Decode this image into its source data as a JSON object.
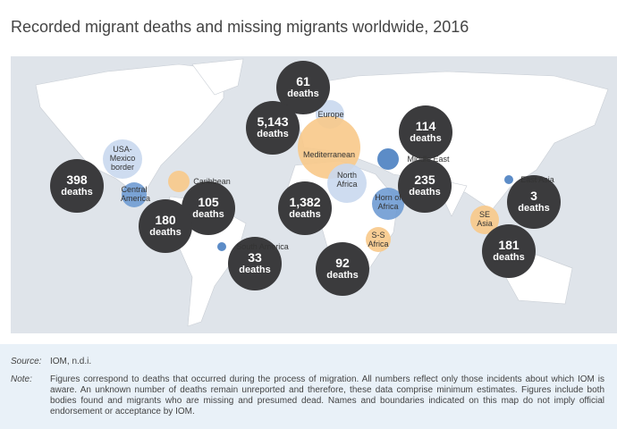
{
  "title": "Recorded migrant deaths and missing migrants worldwide, 2016",
  "regions": [
    {
      "name": "Europe",
      "color": "#c9d8ee",
      "deaths": 61,
      "unit": "deaths"
    },
    {
      "name": "Mediterranean",
      "color": "#f8c98a",
      "deaths": {
        "value": 5143,
        "label": "5,143"
      },
      "unit": "deaths"
    },
    {
      "name": "Middle East",
      "color": "#4a7fc1",
      "deaths": 114,
      "unit": "deaths"
    },
    {
      "name": "USA-Mexico border",
      "color": "#c9d8ee",
      "deaths": 398,
      "unit": "deaths"
    },
    {
      "name": "Caribbean",
      "color": "#f8c98a",
      "deaths": 105,
      "unit": "deaths"
    },
    {
      "name": "Central America",
      "color": "#6f9bd3",
      "deaths": 180,
      "unit": "deaths"
    },
    {
      "name": "North Africa",
      "color": "#c9d8ee",
      "deaths": {
        "value": 1382,
        "label": "1,382"
      },
      "unit": "deaths"
    },
    {
      "name": "Horn of Africa",
      "color": "#6f9bd3",
      "deaths": 235,
      "unit": "deaths"
    },
    {
      "name": "East Asia",
      "color": "#4a7fc1",
      "deaths": 3,
      "unit": "deaths"
    },
    {
      "name": "SE Asia",
      "color": "#f8c98a",
      "deaths": 181,
      "unit": "deaths"
    },
    {
      "name": "South America",
      "color": "#4a7fc1",
      "deaths": 33,
      "unit": "deaths"
    },
    {
      "name": "S-S Africa",
      "color": "#f8c98a",
      "deaths": 92,
      "unit": "deaths"
    }
  ],
  "source": {
    "label": "Source:",
    "text": "IOM, n.d.i."
  },
  "note": {
    "label": "Note:",
    "text": "Figures correspond to deaths that occurred during the process of migration. All numbers reflect only those incidents about which IOM is aware. An unknown number of deaths remain unreported and therefore, these data comprise minimum estimates. Figures include both bodies found and migrants who are missing and presumed dead. Names and boundaries indicated on this map do not imply official endorsement or acceptance by IOM."
  }
}
